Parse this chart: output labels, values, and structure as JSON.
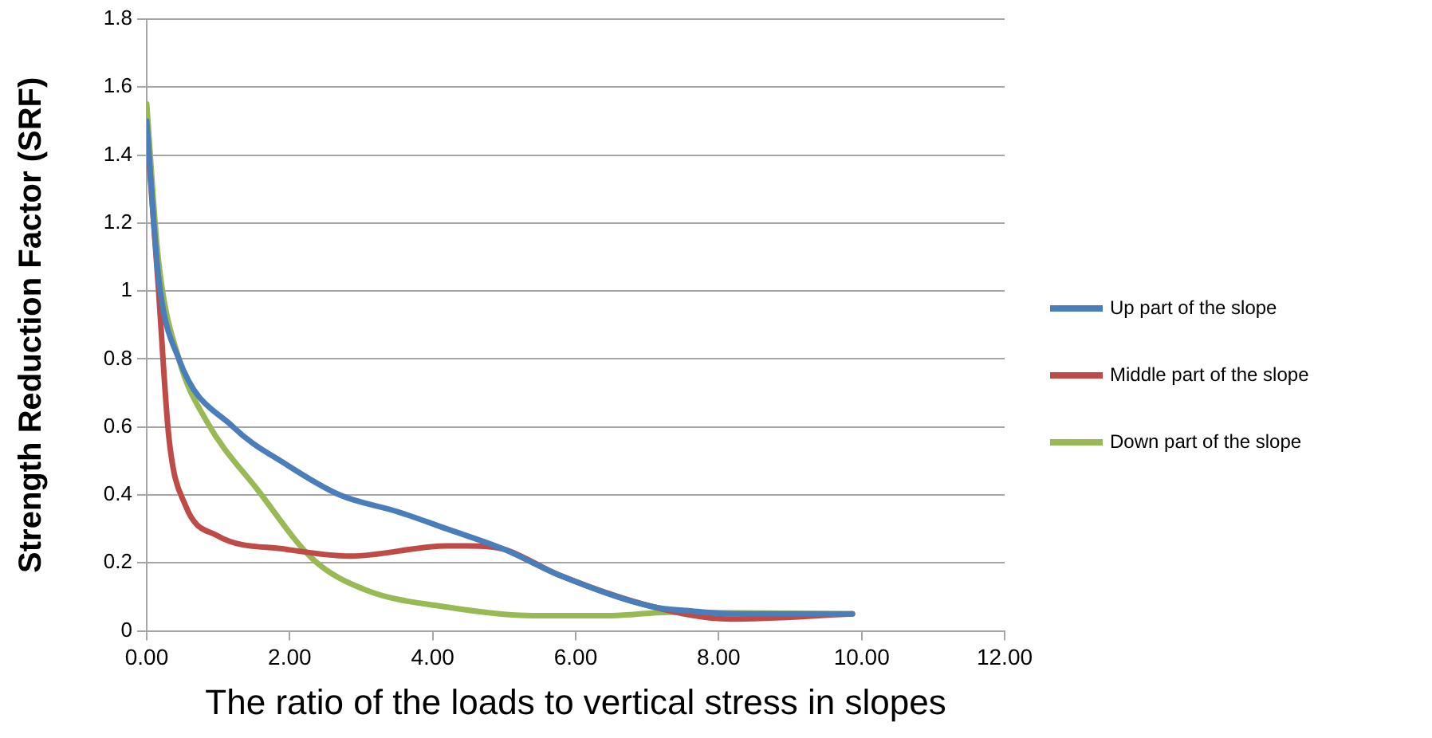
{
  "chart_data": {
    "type": "line",
    "xlabel": "The ratio of the loads to vertical stress in slopes",
    "ylabel": "Strength Reduction Factor (SRF)",
    "series": [
      {
        "name": "Up part of the slope",
        "color": "#4a7ebb",
        "x": [
          0,
          0.16,
          0.45,
          1.21,
          1.95,
          2.7,
          3.52,
          4.2,
          5.0,
          5.76,
          7.1,
          7.55,
          8.2,
          9.87
        ],
        "values": [
          1.5,
          1.05,
          0.8,
          0.6,
          0.49,
          0.4,
          0.35,
          0.3,
          0.24,
          0.165,
          0.07,
          0.06,
          0.05,
          0.05
        ]
      },
      {
        "name": "Middle part of the slope",
        "color": "#be4b48",
        "x": [
          0,
          0.16,
          0.31,
          0.54,
          0.99,
          1.95,
          2.85,
          4.2,
          4.5,
          5.0,
          5.76,
          7.1,
          8.16,
          9.87
        ],
        "values": [
          1.48,
          1.02,
          0.57,
          0.37,
          0.28,
          0.24,
          0.22,
          0.25,
          0.25,
          0.24,
          0.165,
          0.07,
          0.035,
          0.05
        ]
      },
      {
        "name": "Down part of the slope",
        "color": "#98b954",
        "x": [
          0,
          0.16,
          0.45,
          0.83,
          1.57,
          2.33,
          3.07,
          4.2,
          5.4,
          6.5,
          7.3,
          9.87
        ],
        "values": [
          1.55,
          1.1,
          0.8,
          0.62,
          0.41,
          0.21,
          0.12,
          0.07,
          0.045,
          0.045,
          0.055,
          0.05
        ]
      }
    ],
    "xlim": [
      0,
      12
    ],
    "xticks": [
      {
        "value": 0,
        "label": "0.00"
      },
      {
        "value": 2,
        "label": "2.00"
      },
      {
        "value": 4,
        "label": "4.00"
      },
      {
        "value": 6,
        "label": "6.00"
      },
      {
        "value": 8,
        "label": "8.00"
      },
      {
        "value": 10,
        "label": "10.00"
      },
      {
        "value": 12,
        "label": "12.00"
      }
    ],
    "ylim": [
      0,
      1.8
    ],
    "yticks": [
      0,
      0.2,
      0.4,
      0.6,
      0.8,
      1,
      1.2,
      1.4,
      1.6,
      1.8
    ],
    "grid": "y",
    "legend": "right",
    "marker": "none",
    "line_style": "solid"
  }
}
